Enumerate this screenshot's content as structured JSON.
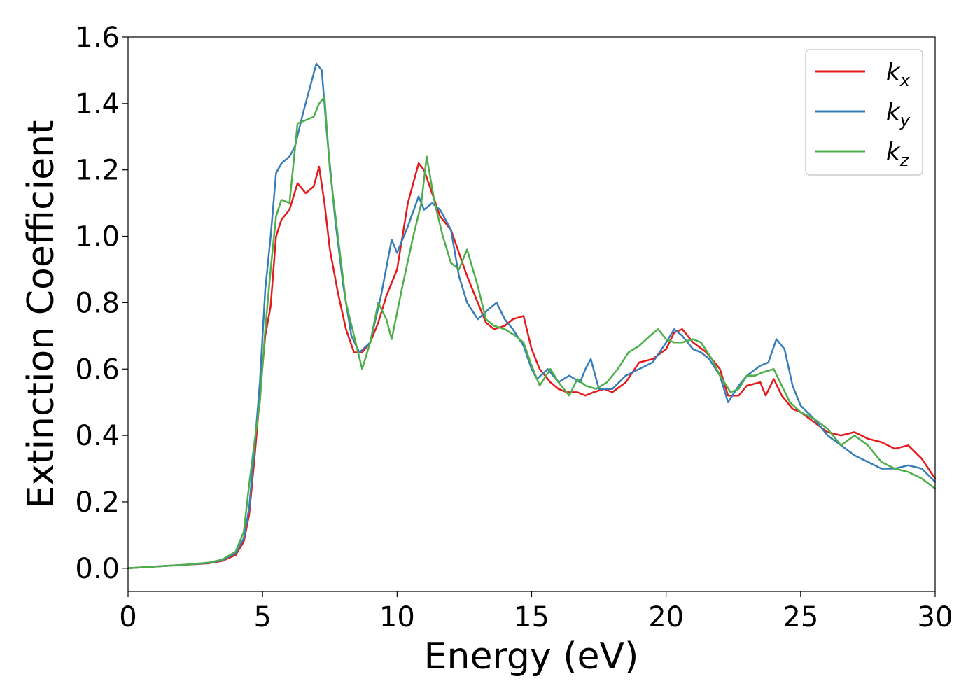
{
  "chart_data": {
    "type": "line",
    "title": "",
    "xlabel": "Energy (eV)",
    "ylabel": "Extinction Coefficient",
    "xlim": [
      0,
      30
    ],
    "ylim": [
      -0.07,
      1.6
    ],
    "xticks": [
      "0",
      "5",
      "10",
      "15",
      "20",
      "25",
      "30"
    ],
    "yticks": [
      "0.0",
      "0.2",
      "0.4",
      "0.6",
      "0.8",
      "1.0",
      "1.2",
      "1.4",
      "1.6"
    ],
    "grid": false,
    "legend_position": "top-right",
    "series": [
      {
        "name": "k",
        "subscript": "x",
        "color": "#e41a1c",
        "x": [
          0,
          1,
          2,
          3,
          3.5,
          4,
          4.3,
          4.5,
          4.7,
          4.9,
          5.1,
          5.3,
          5.5,
          5.7,
          6.0,
          6.3,
          6.6,
          6.9,
          7.1,
          7.3,
          7.5,
          7.8,
          8.1,
          8.4,
          8.7,
          9.0,
          9.3,
          9.6,
          10.0,
          10.4,
          10.8,
          11.0,
          11.3,
          11.6,
          12.0,
          12.3,
          12.6,
          13.0,
          13.3,
          13.6,
          14.0,
          14.3,
          14.7,
          15.0,
          15.3,
          15.7,
          16.0,
          16.3,
          16.7,
          17.0,
          17.3,
          17.7,
          18.0,
          18.5,
          19.0,
          19.5,
          20.0,
          20.3,
          20.6,
          21.0,
          21.5,
          22.0,
          22.3,
          22.7,
          23.0,
          23.5,
          23.7,
          24.0,
          24.3,
          24.7,
          25.0,
          25.5,
          26.0,
          26.5,
          27.0,
          27.5,
          28.0,
          28.5,
          29.0,
          29.5,
          30.0
        ],
        "y": [
          0,
          0.005,
          0.01,
          0.015,
          0.022,
          0.04,
          0.08,
          0.16,
          0.33,
          0.52,
          0.7,
          0.79,
          1.0,
          1.05,
          1.08,
          1.16,
          1.13,
          1.15,
          1.21,
          1.1,
          0.96,
          0.83,
          0.72,
          0.65,
          0.65,
          0.68,
          0.74,
          0.82,
          0.9,
          1.1,
          1.22,
          1.2,
          1.13,
          1.06,
          1.02,
          0.95,
          0.88,
          0.8,
          0.74,
          0.72,
          0.73,
          0.75,
          0.76,
          0.66,
          0.6,
          0.56,
          0.54,
          0.53,
          0.53,
          0.52,
          0.53,
          0.54,
          0.53,
          0.56,
          0.62,
          0.63,
          0.66,
          0.71,
          0.72,
          0.68,
          0.65,
          0.6,
          0.52,
          0.52,
          0.55,
          0.56,
          0.52,
          0.57,
          0.52,
          0.48,
          0.47,
          0.44,
          0.41,
          0.4,
          0.41,
          0.39,
          0.38,
          0.36,
          0.37,
          0.33,
          0.27
        ]
      },
      {
        "name": "k",
        "subscript": "y",
        "color": "#377eb8",
        "x": [
          0,
          1,
          2,
          3,
          3.5,
          4,
          4.3,
          4.5,
          4.7,
          4.9,
          5.1,
          5.3,
          5.5,
          5.7,
          6.0,
          6.2,
          6.5,
          6.8,
          7.0,
          7.2,
          7.4,
          7.7,
          8.0,
          8.3,
          8.6,
          9.0,
          9.4,
          9.8,
          10.0,
          10.4,
          10.8,
          11.0,
          11.3,
          11.6,
          12.0,
          12.3,
          12.6,
          13.0,
          13.4,
          13.7,
          14.0,
          14.3,
          14.7,
          15.0,
          15.2,
          15.6,
          16.0,
          16.4,
          16.8,
          17.0,
          17.2,
          17.5,
          18.0,
          18.5,
          19.0,
          19.5,
          20.0,
          20.3,
          20.6,
          21.0,
          21.3,
          21.6,
          22.0,
          22.3,
          22.7,
          23.0,
          23.5,
          23.8,
          24.1,
          24.4,
          24.7,
          25.0,
          25.5,
          26.0,
          26.5,
          27.0,
          27.5,
          28.0,
          28.5,
          29.0,
          29.5,
          30.0
        ],
        "y": [
          0,
          0.005,
          0.01,
          0.016,
          0.024,
          0.045,
          0.09,
          0.18,
          0.36,
          0.56,
          0.84,
          1.0,
          1.19,
          1.22,
          1.24,
          1.27,
          1.37,
          1.46,
          1.52,
          1.5,
          1.3,
          1.05,
          0.85,
          0.7,
          0.65,
          0.68,
          0.82,
          0.99,
          0.95,
          1.03,
          1.12,
          1.08,
          1.1,
          1.08,
          1.02,
          0.88,
          0.8,
          0.75,
          0.78,
          0.8,
          0.75,
          0.72,
          0.67,
          0.6,
          0.57,
          0.6,
          0.56,
          0.58,
          0.56,
          0.6,
          0.63,
          0.54,
          0.54,
          0.58,
          0.6,
          0.62,
          0.68,
          0.72,
          0.7,
          0.66,
          0.65,
          0.63,
          0.58,
          0.5,
          0.55,
          0.58,
          0.61,
          0.62,
          0.69,
          0.66,
          0.55,
          0.49,
          0.45,
          0.4,
          0.37,
          0.34,
          0.32,
          0.3,
          0.3,
          0.31,
          0.3,
          0.26
        ]
      },
      {
        "name": "k",
        "subscript": "z",
        "color": "#4daf4a",
        "x": [
          0,
          1,
          2,
          3,
          3.5,
          4,
          4.3,
          4.5,
          4.7,
          4.9,
          5.1,
          5.3,
          5.5,
          5.7,
          6.0,
          6.3,
          6.6,
          6.9,
          7.1,
          7.3,
          7.5,
          7.8,
          8.1,
          8.4,
          8.7,
          9.0,
          9.3,
          9.6,
          9.8,
          10.2,
          10.6,
          10.9,
          11.1,
          11.4,
          11.7,
          12.0,
          12.3,
          12.6,
          13.0,
          13.3,
          13.6,
          14.0,
          14.4,
          14.7,
          15.0,
          15.3,
          15.7,
          16.0,
          16.4,
          16.7,
          17.0,
          17.4,
          17.8,
          18.2,
          18.6,
          19.0,
          19.4,
          19.7,
          20.0,
          20.3,
          20.6,
          21.0,
          21.3,
          21.7,
          22.0,
          22.4,
          22.7,
          23.0,
          23.3,
          23.6,
          24.0,
          24.3,
          24.6,
          25.0,
          25.5,
          26.0,
          26.5,
          27.0,
          27.5,
          28.0,
          28.5,
          29.0,
          29.5,
          30.0
        ],
        "y": [
          0,
          0.005,
          0.01,
          0.017,
          0.026,
          0.05,
          0.11,
          0.25,
          0.38,
          0.5,
          0.72,
          0.9,
          1.06,
          1.11,
          1.1,
          1.34,
          1.35,
          1.36,
          1.4,
          1.42,
          1.2,
          1.0,
          0.8,
          0.7,
          0.6,
          0.68,
          0.8,
          0.75,
          0.69,
          0.85,
          1.0,
          1.1,
          1.24,
          1.1,
          1.0,
          0.92,
          0.9,
          0.96,
          0.85,
          0.75,
          0.73,
          0.72,
          0.7,
          0.68,
          0.61,
          0.55,
          0.6,
          0.56,
          0.52,
          0.57,
          0.55,
          0.54,
          0.56,
          0.6,
          0.65,
          0.67,
          0.7,
          0.72,
          0.69,
          0.68,
          0.68,
          0.69,
          0.68,
          0.63,
          0.58,
          0.53,
          0.54,
          0.58,
          0.58,
          0.59,
          0.6,
          0.55,
          0.5,
          0.47,
          0.45,
          0.42,
          0.37,
          0.4,
          0.37,
          0.32,
          0.3,
          0.29,
          0.27,
          0.24
        ]
      }
    ]
  }
}
